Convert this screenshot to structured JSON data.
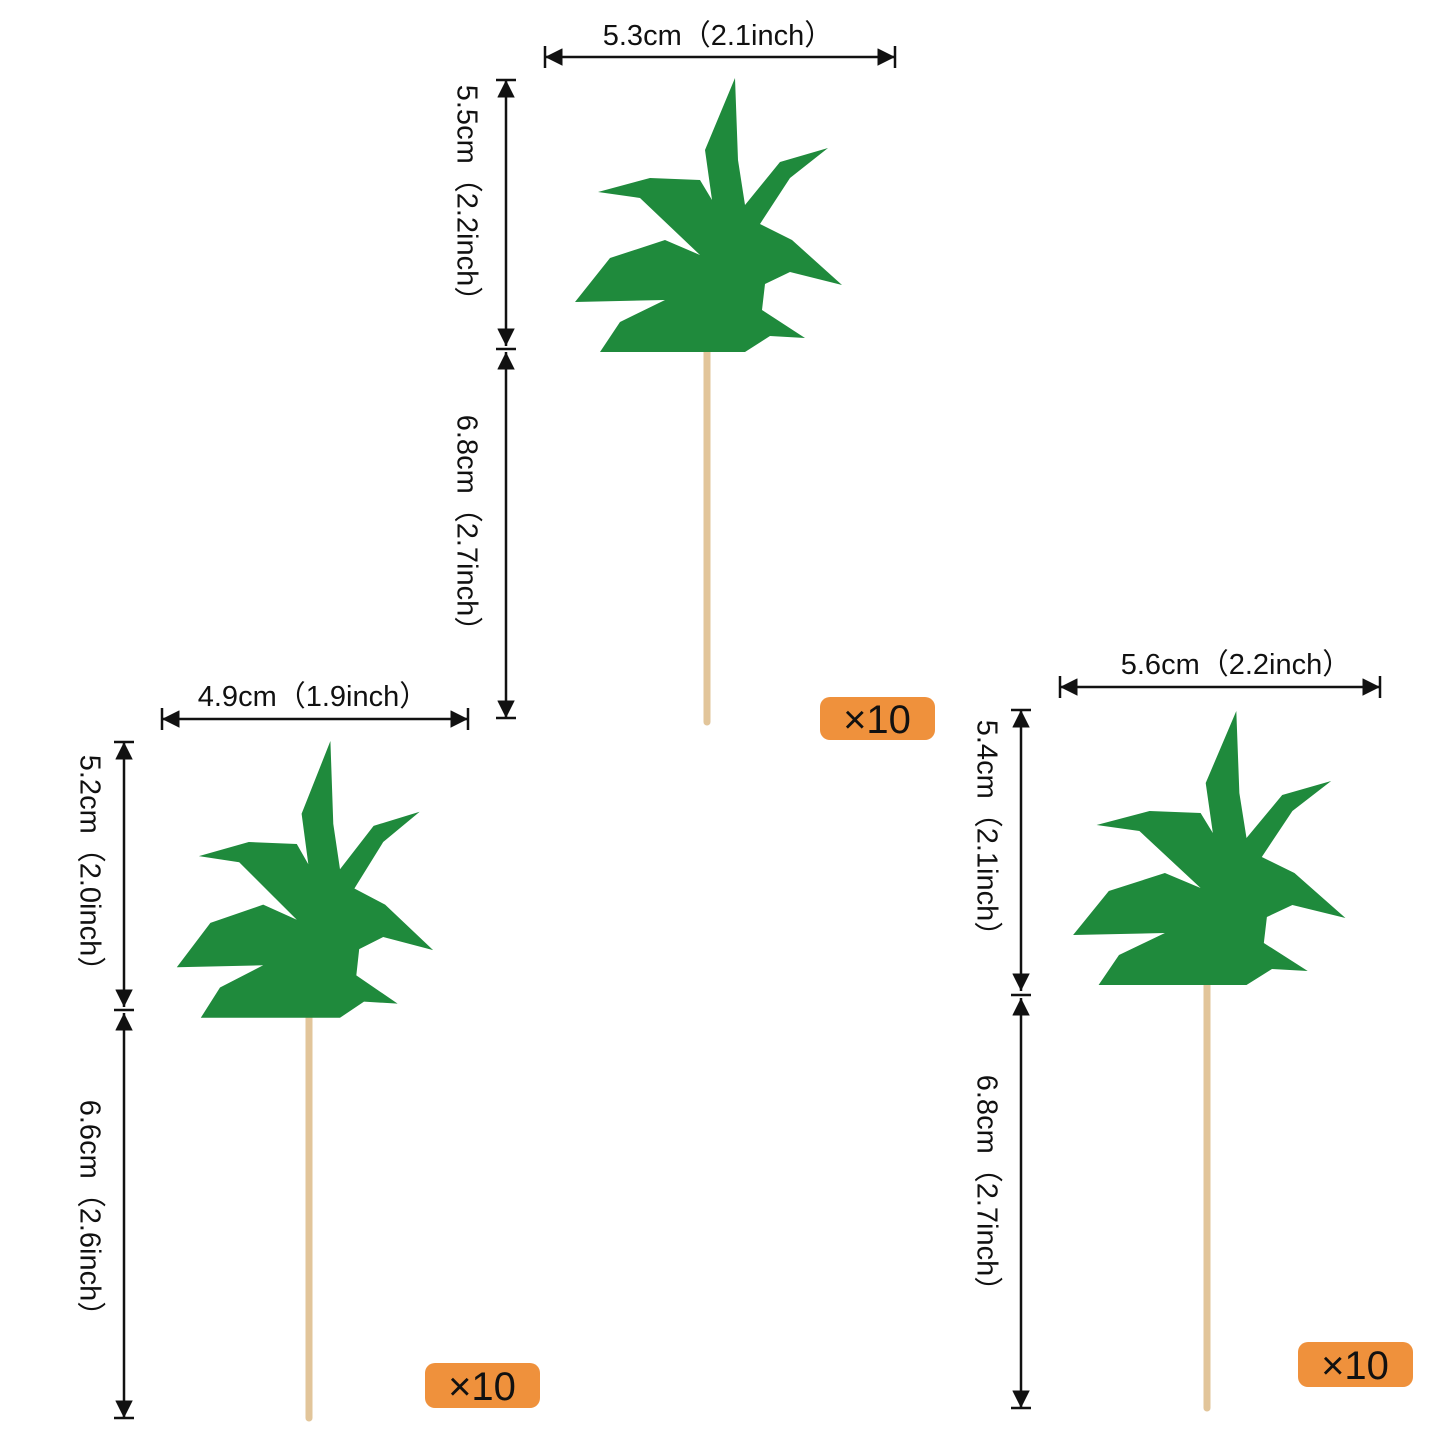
{
  "toppers": [
    {
      "width": "5.3cm（2.1inch）",
      "top_height": "5.5cm（2.2inch）",
      "stick_height": "6.8cm（2.7inch）",
      "quantity": "×10"
    },
    {
      "width": "4.9cm（1.9inch）",
      "top_height": "5.2cm（2.0inch）",
      "stick_height": "6.6cm（2.6inch）",
      "quantity": "×10"
    },
    {
      "width": "5.6cm（2.2inch）",
      "top_height": "5.4cm（2.1inch）",
      "stick_height": "6.8cm（2.7inch）",
      "quantity": "×10"
    }
  ]
}
